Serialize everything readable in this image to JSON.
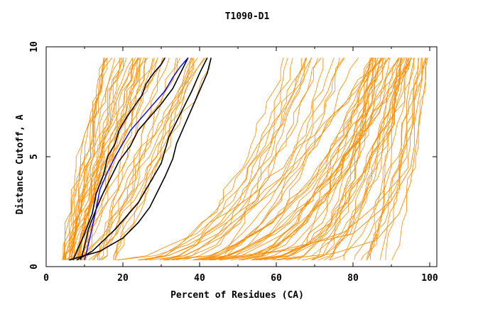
{
  "chart_data": {
    "type": "line",
    "title": "T1090-D1",
    "xlabel": "Percent of Residues (CA)",
    "ylabel": "Distance Cutoff, A",
    "xlim": [
      0,
      100
    ],
    "ylim": [
      0,
      10
    ],
    "x_ticks": [
      "0",
      "20",
      "40",
      "60",
      "80",
      "100"
    ],
    "y_ticks": [
      "0",
      "5",
      "10"
    ],
    "grid": false,
    "legend": "none",
    "colors": {
      "background_models": "#ff8c00",
      "highlight_black": "#000000",
      "highlight_blue": "#0000ff"
    },
    "y_levels": [
      0.3,
      0.5,
      1,
      1.5,
      2,
      2.5,
      3,
      3.5,
      4,
      4.5,
      5,
      5.5,
      6,
      6.5,
      7,
      7.5,
      8,
      8.5,
      9,
      9.5
    ],
    "background_groups": [
      {
        "count": 28,
        "start": [
          3.5,
          9
        ],
        "end": [
          14,
          30
        ],
        "shape": [
          0.7,
          1.2
        ]
      },
      {
        "count": 18,
        "start": [
          8,
          18
        ],
        "end": [
          24,
          45
        ],
        "shape": [
          0.8,
          1.3
        ]
      },
      {
        "count": 22,
        "start": [
          18,
          45
        ],
        "end": [
          62,
          88
        ],
        "shape": [
          1.6,
          2.4
        ]
      },
      {
        "count": 30,
        "start": [
          35,
          70
        ],
        "end": [
          84,
          96
        ],
        "shape": [
          1.5,
          2.8
        ]
      },
      {
        "count": 14,
        "start": [
          70,
          90
        ],
        "end": [
          92,
          99
        ],
        "shape": [
          1.1,
          1.8
        ]
      }
    ],
    "tail_series": [
      {
        "x": [
          41,
          60,
          80,
          90,
          95,
          96,
          96,
          97,
          98,
          98
        ],
        "y": [
          0.3,
          0.7,
          1.5,
          3,
          4.5,
          5.5,
          6.5,
          7.5,
          8.5,
          9.5
        ]
      },
      {
        "x": [
          45,
          65,
          78,
          86,
          92,
          93,
          94,
          94,
          95,
          96
        ],
        "y": [
          0.3,
          0.8,
          1.6,
          2.8,
          4,
          5.2,
          6.3,
          7.5,
          8.7,
          9.5
        ]
      },
      {
        "x": [
          60,
          75,
          86,
          92,
          95,
          96,
          97,
          98,
          99,
          99
        ],
        "y": [
          0.3,
          0.6,
          1.2,
          2.4,
          3.8,
          5,
          6.2,
          7.4,
          8.6,
          9.5
        ]
      }
    ],
    "highlight_series": [
      {
        "x": [
          7,
          8,
          10,
          12,
          13,
          15,
          16,
          18,
          19,
          21,
          23,
          25,
          26,
          28,
          30,
          31
        ],
        "y": [
          0.3,
          0.7,
          1.5,
          2.4,
          3.3,
          4.2,
          5,
          5.6,
          6.2,
          6.8,
          7.3,
          7.8,
          8.3,
          8.8,
          9.2,
          9.5
        ]
      },
      {
        "x": [
          9,
          10,
          11,
          13,
          15,
          17,
          19,
          22,
          24,
          27,
          30,
          33,
          35,
          37
        ],
        "y": [
          0.3,
          0.9,
          1.7,
          2.6,
          3.4,
          4.1,
          4.8,
          5.5,
          6.2,
          6.8,
          7.4,
          8.1,
          8.8,
          9.5
        ]
      },
      {
        "x": [
          8,
          12,
          15,
          18,
          21,
          24,
          26,
          28,
          30,
          31,
          32,
          34,
          36,
          38,
          40,
          42
        ],
        "y": [
          0.3,
          0.7,
          1.2,
          1.7,
          2.3,
          2.9,
          3.5,
          4.1,
          4.7,
          5.3,
          5.9,
          6.6,
          7.3,
          8,
          8.8,
          9.5
        ]
      },
      {
        "x": [
          6,
          14,
          20,
          24,
          27,
          29,
          31,
          33,
          34,
          36,
          38,
          40,
          42,
          43
        ],
        "y": [
          0.3,
          0.7,
          1.3,
          2,
          2.7,
          3.4,
          4.1,
          4.9,
          5.6,
          6.4,
          7.2,
          8,
          8.8,
          9.5
        ]
      }
    ],
    "blue_series": {
      "x": [
        10,
        11,
        12,
        13,
        14,
        16,
        18,
        20,
        22,
        25,
        28,
        31,
        33,
        35,
        37
      ],
      "y": [
        0.3,
        1,
        1.8,
        2.6,
        3.5,
        4.3,
        5,
        5.6,
        6.2,
        6.8,
        7.4,
        8,
        8.6,
        9.1,
        9.5
      ]
    }
  }
}
